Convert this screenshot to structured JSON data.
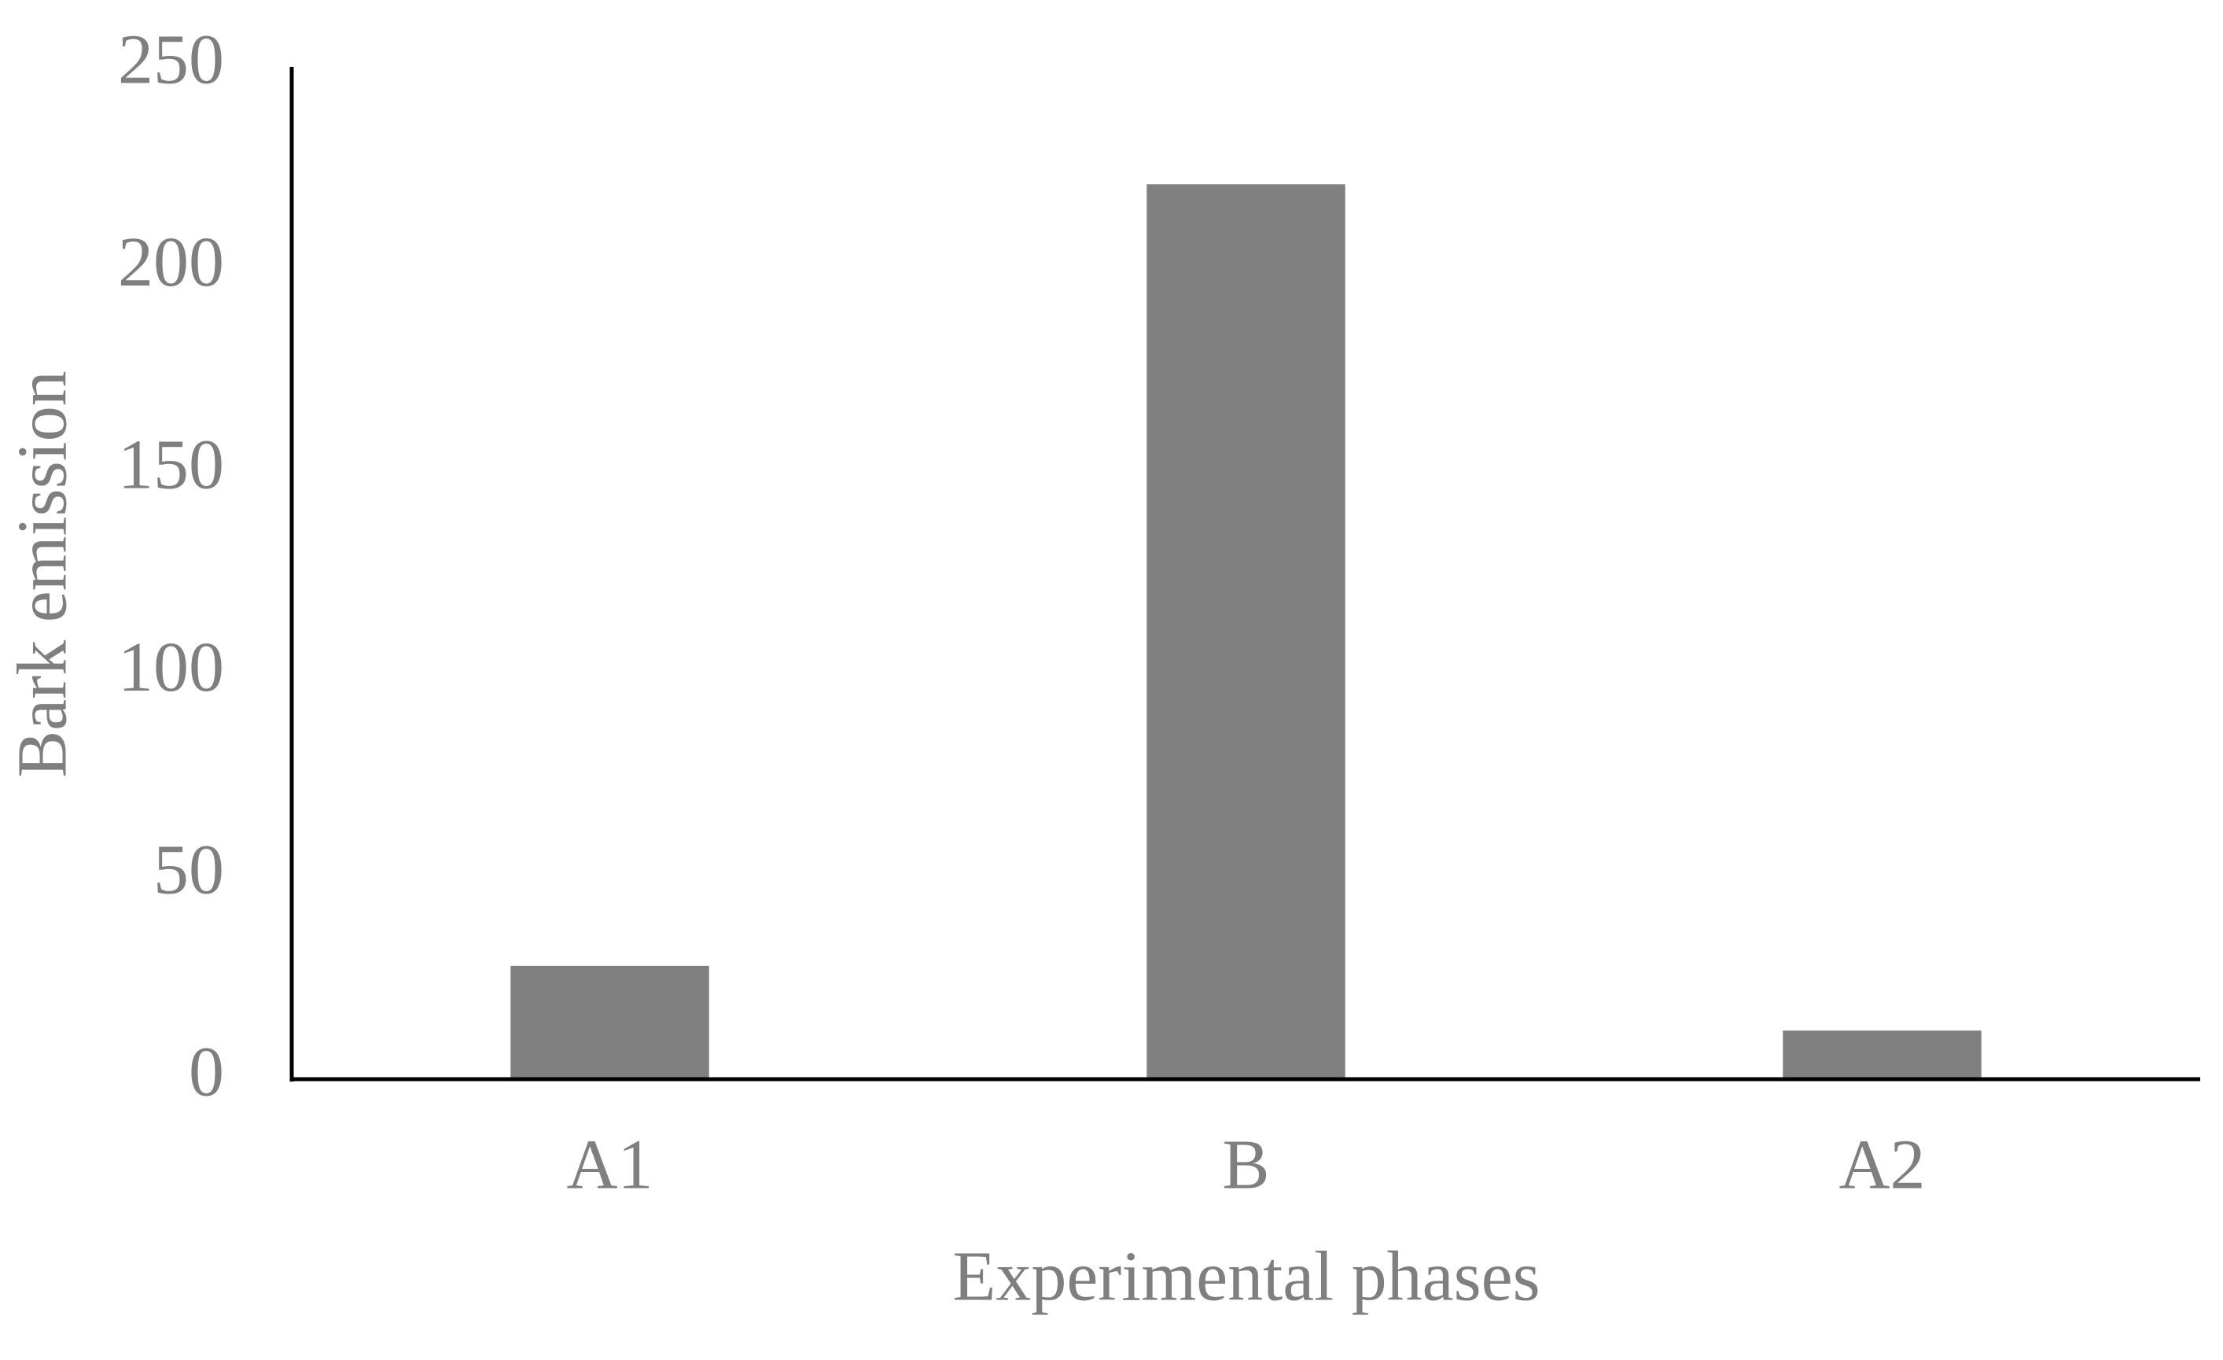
{
  "chart_data": {
    "type": "bar",
    "categories": [
      "A1",
      "B",
      "A2"
    ],
    "values": [
      28,
      221,
      12
    ],
    "color": "#808080",
    "ylim": [
      0,
      250
    ],
    "yticks": [
      0,
      50,
      100,
      150,
      200,
      250
    ],
    "grid": false,
    "x_label": "Experimental phases",
    "y_label": "Bark emission"
  }
}
